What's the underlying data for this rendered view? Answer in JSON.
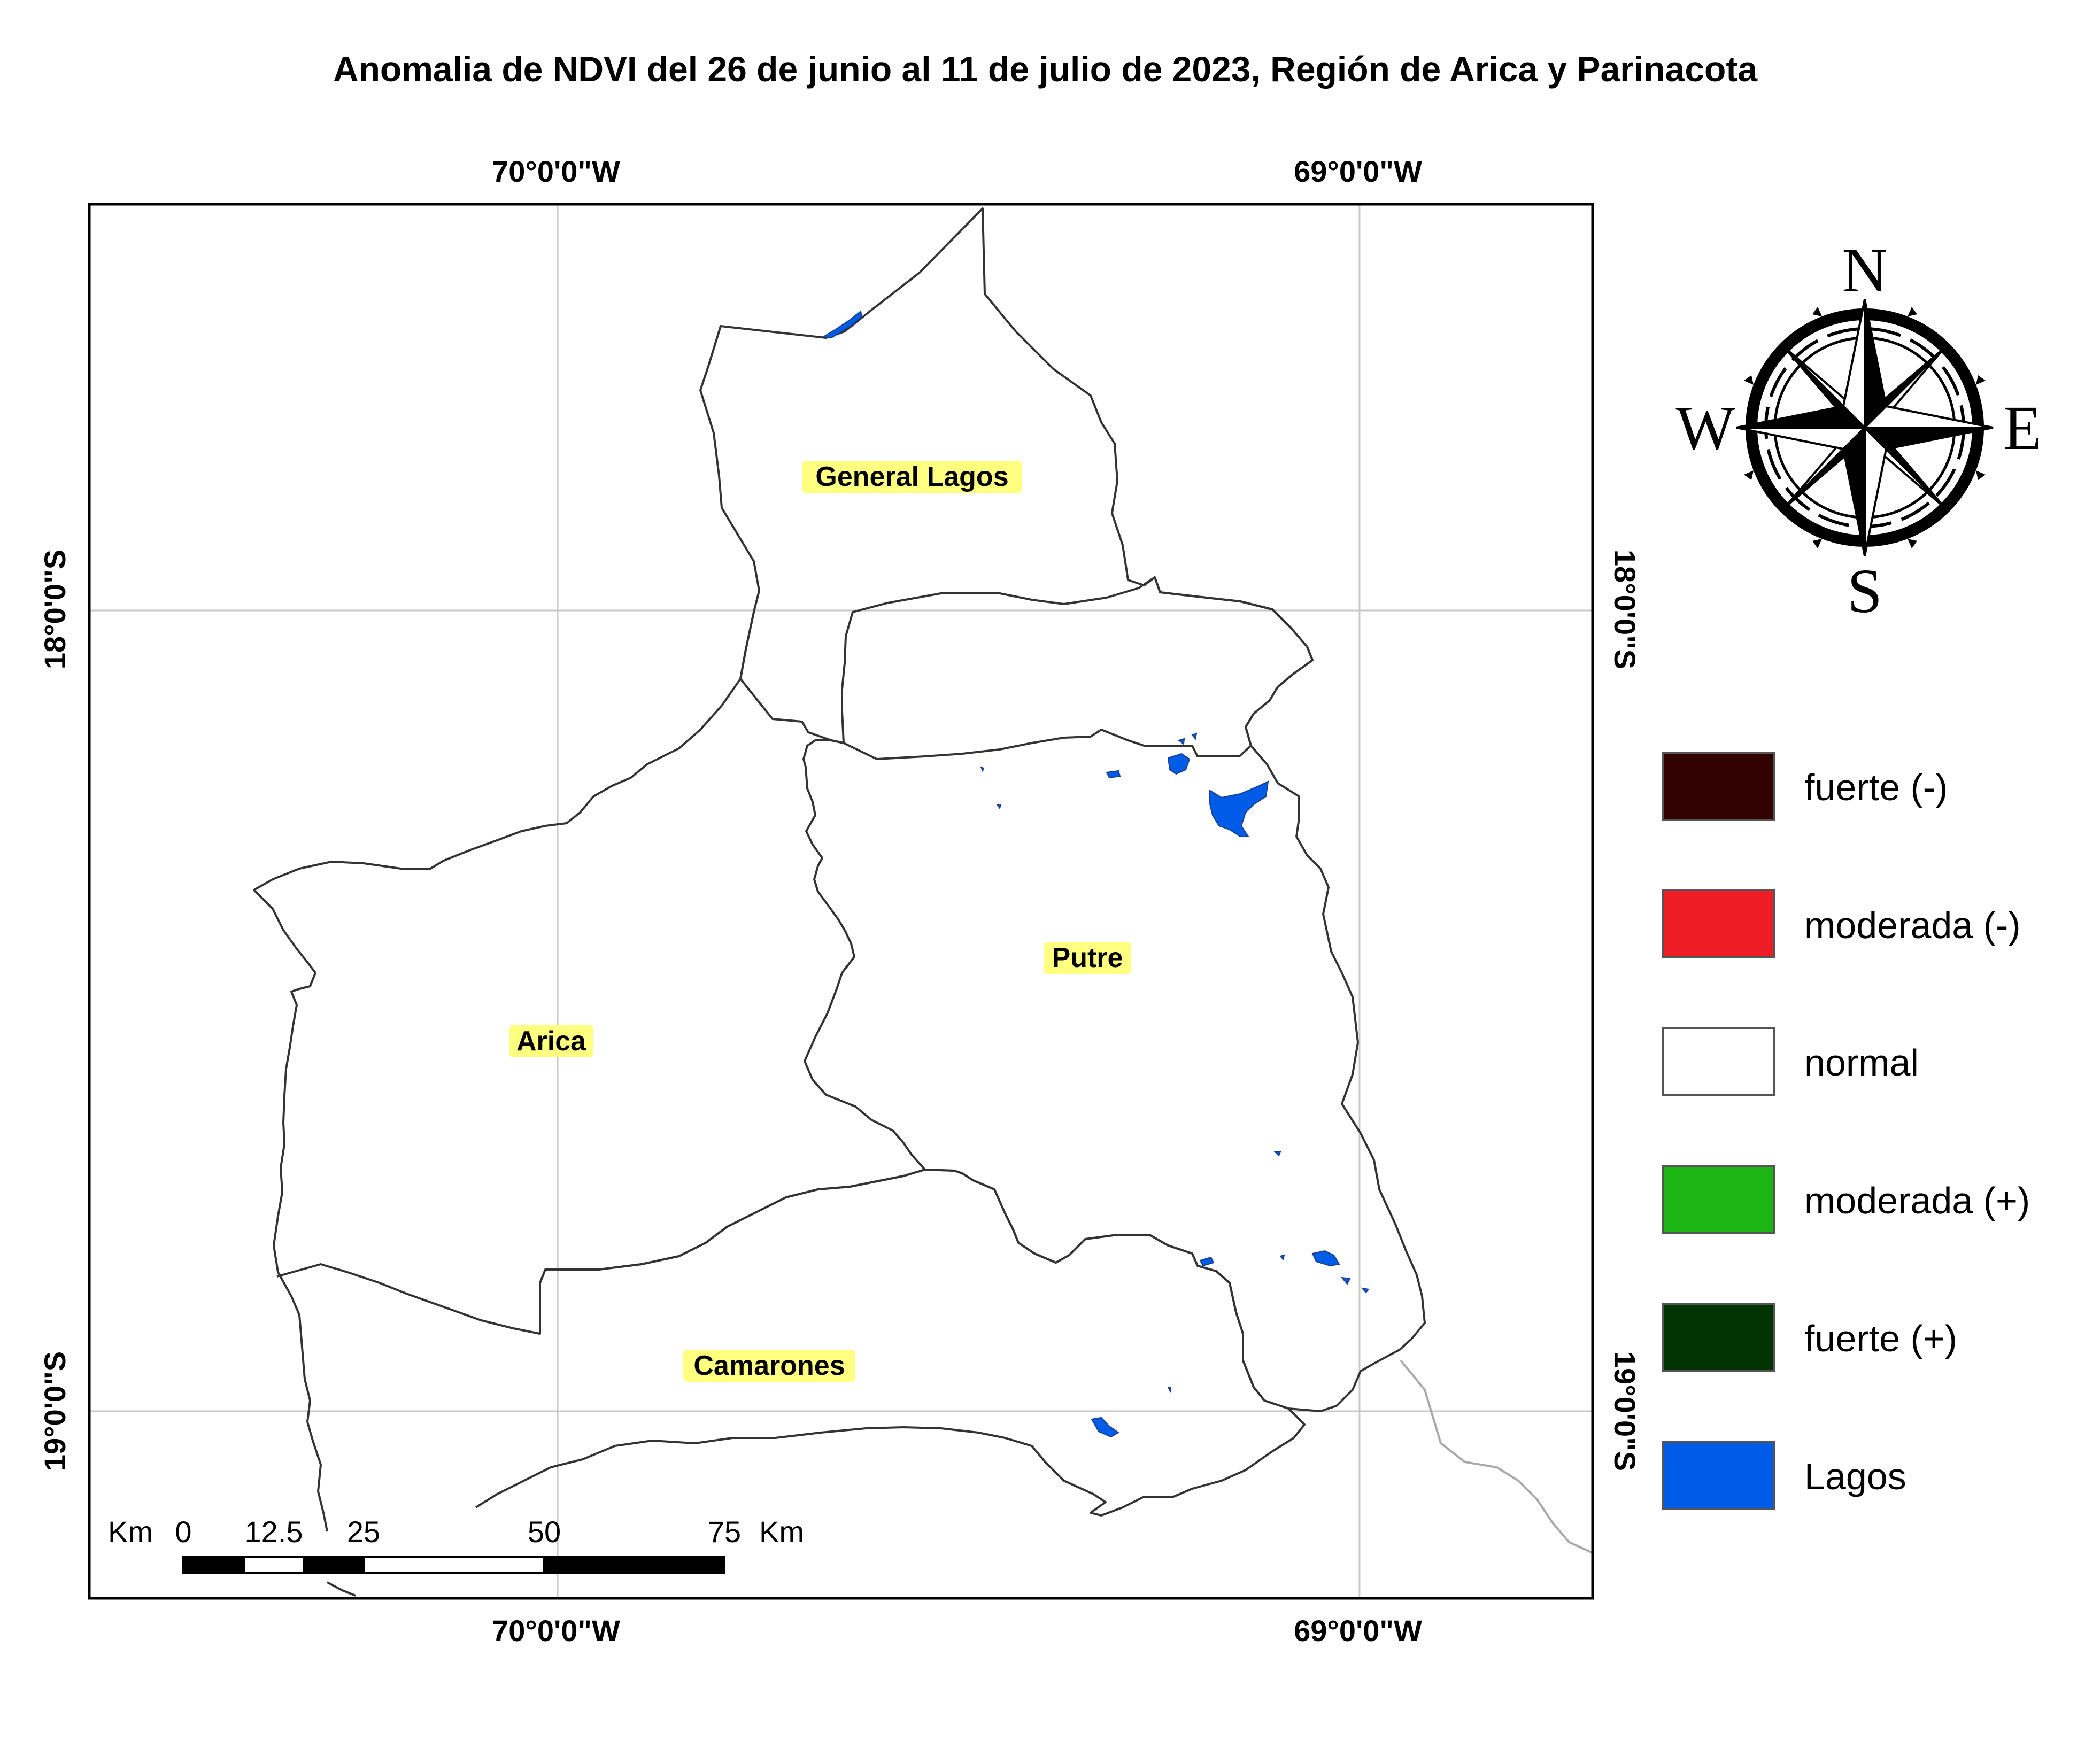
{
  "title": "Anomalia de NDVI del 26 de junio al 11 de julio de 2023, Región de Arica y Parinacota",
  "graticule": {
    "top_labels": [
      "70°0'0\"W",
      "69°0'0\"W"
    ],
    "bottom_labels": [
      "70°0'0\"W",
      "69°0'0\"W"
    ],
    "left_labels": [
      "18°0'0\"S",
      "19°0'0\"S"
    ],
    "right_labels": [
      "18°0'0\"S",
      "19°0'0\"S"
    ]
  },
  "comunas": [
    {
      "name": "General Lagos"
    },
    {
      "name": "Putre"
    },
    {
      "name": "Arica"
    },
    {
      "name": "Camarones"
    }
  ],
  "legend": [
    {
      "label": "fuerte (-)",
      "color": "#330000"
    },
    {
      "label": "moderada (-)",
      "color": "#ee1c24"
    },
    {
      "label": "normal",
      "color": "#ffffff"
    },
    {
      "label": "moderada (+)",
      "color": "#1db514"
    },
    {
      "label": "fuerte (+)",
      "color": "#003300"
    },
    {
      "label": "Lagos",
      "color": "#005ce6"
    }
  ],
  "scale_bar": {
    "unit": "Km",
    "ticks": [
      "0",
      "12.5",
      "25",
      "50",
      "75"
    ]
  },
  "compass": {
    "north": "N",
    "south": "S",
    "east": "E",
    "west": "W"
  },
  "colors": {
    "boundary": "#333333",
    "lake": "#005ce6",
    "grid": "#c8c8c8",
    "border": "#000000",
    "label_highlight": "#ffff80"
  }
}
